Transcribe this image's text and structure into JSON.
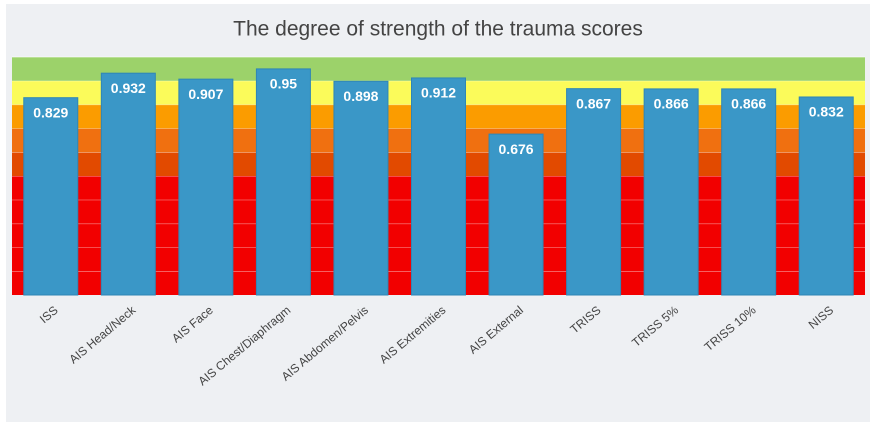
{
  "chart_data": {
    "type": "bar",
    "title": "The degree of strength of the trauma scores",
    "categories": [
      "ISS",
      "AIS Head/Neck",
      "AIS Face",
      "AIS Chest/Diaphragm",
      "AIS Abdomen/Pelvis",
      "AIS Extremities",
      "AIS External",
      "TRISS",
      "TRISS 5%",
      "TRISS 10%",
      "NISS"
    ],
    "values": [
      0.829,
      0.932,
      0.907,
      0.95,
      0.898,
      0.912,
      0.676,
      0.867,
      0.866,
      0.866,
      0.832
    ],
    "color": "#3a97c7",
    "ylim": [
      0,
      1
    ],
    "bands": [
      {
        "from": 0,
        "to": 0.1,
        "color": "#f20000"
      },
      {
        "from": 0.1,
        "to": 0.2,
        "color": "#f20000"
      },
      {
        "from": 0.2,
        "to": 0.3,
        "color": "#f20000"
      },
      {
        "from": 0.3,
        "to": 0.4,
        "color": "#f20000"
      },
      {
        "from": 0.4,
        "to": 0.5,
        "color": "#f20000"
      },
      {
        "from": 0.5,
        "to": 0.6,
        "color": "#e24a00"
      },
      {
        "from": 0.6,
        "to": 0.7,
        "color": "#f07010"
      },
      {
        "from": 0.7,
        "to": 0.8,
        "color": "#fb9c00"
      },
      {
        "from": 0.8,
        "to": 0.9,
        "color": "#fbfb5a"
      },
      {
        "from": 0.9,
        "to": 1,
        "color": "#9cd26a"
      }
    ]
  }
}
